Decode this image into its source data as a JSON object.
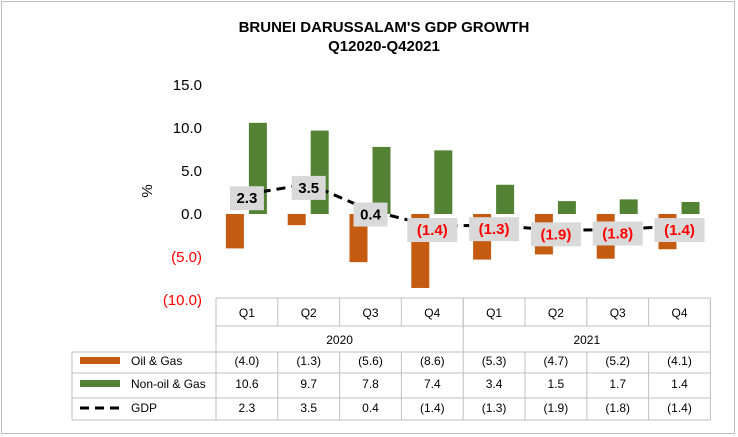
{
  "chart_data": {
    "type": "bar",
    "title": "BRUNEI DARUSSALAM'S GDP GROWTH",
    "subtitle": "Q12020-Q42021",
    "ylabel": "%",
    "ylim": [
      -10,
      15
    ],
    "yticks": [
      "15.0",
      "10.0",
      "5.0",
      "0.0",
      "(5.0)",
      "(10.0)"
    ],
    "ytick_values": [
      15,
      10,
      5,
      0,
      -5,
      -10
    ],
    "categories": [
      "Q1",
      "Q2",
      "Q3",
      "Q4",
      "Q1",
      "Q2",
      "Q3",
      "Q4"
    ],
    "years": [
      {
        "label": "2020",
        "start": 0,
        "count": 4
      },
      {
        "label": "2021",
        "start": 4,
        "count": 4
      }
    ],
    "series": [
      {
        "name": "Oil & Gas",
        "type": "bar",
        "color": "#c55a11",
        "values": [
          -4.0,
          -1.3,
          -5.6,
          -8.6,
          -5.3,
          -4.7,
          -5.2,
          -4.1
        ],
        "labels": [
          "(4.0)",
          "(1.3)",
          "(5.6)",
          "(8.6)",
          "(5.3)",
          "(4.7)",
          "(5.2)",
          "(4.1)"
        ]
      },
      {
        "name": "Non-oil & Gas",
        "type": "bar",
        "color": "#548235",
        "values": [
          10.6,
          9.7,
          7.8,
          7.4,
          3.4,
          1.5,
          1.7,
          1.4
        ],
        "labels": [
          "10.6",
          "9.7",
          "7.8",
          "7.4",
          "3.4",
          "1.5",
          "1.7",
          "1.4"
        ]
      },
      {
        "name": "GDP",
        "type": "line",
        "color": "#000000",
        "values": [
          2.3,
          3.5,
          0.4,
          -1.4,
          -1.3,
          -1.9,
          -1.8,
          -1.4
        ],
        "labels": [
          "2.3",
          "3.5",
          "0.4",
          "(1.4)",
          "(1.3)",
          "(1.9)",
          "(1.8)",
          "(1.4)"
        ]
      }
    ],
    "data_labels": [
      "2.3",
      "3.5",
      "0.4",
      "(1.4)",
      "(1.3)",
      "(1.9)",
      "(1.8)",
      "(1.4)"
    ],
    "negative_color": "#ff0000",
    "positive_color": "#000000",
    "grid": false
  }
}
